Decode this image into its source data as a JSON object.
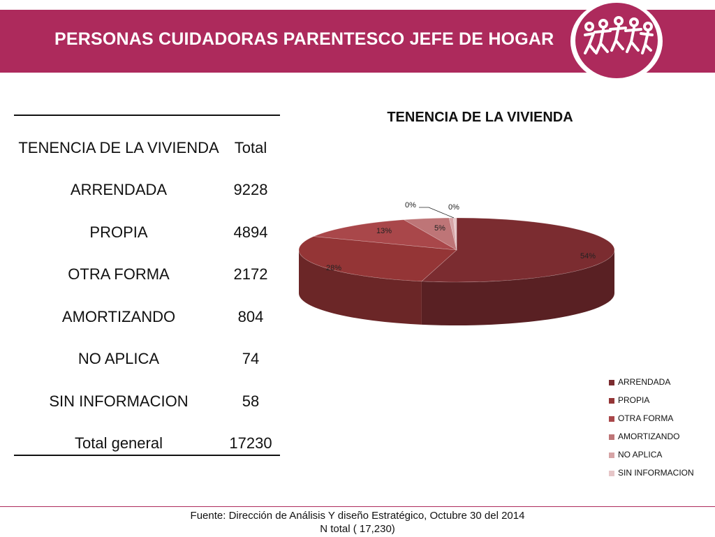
{
  "header": {
    "title": "PERSONAS  CUIDADORAS PARENTESCO JEFE DE HOGAR"
  },
  "table": {
    "header": [
      "TENENCIA DE LA VIVIENDA",
      "Total"
    ],
    "rows": [
      [
        "ARRENDADA",
        "9228"
      ],
      [
        "PROPIA",
        "4894"
      ],
      [
        "OTRA FORMA",
        "2172"
      ],
      [
        "AMORTIZANDO",
        "804"
      ],
      [
        "NO APLICA",
        "74"
      ],
      [
        "SIN INFORMACION",
        "58"
      ]
    ],
    "total": [
      "Total general",
      "17230"
    ]
  },
  "chart_data": {
    "type": "pie",
    "title": "TENENCIA DE LA VIVIENDA",
    "categories": [
      "ARRENDADA",
      "PROPIA",
      "OTRA FORMA",
      "AMORTIZANDO",
      "NO APLICA",
      "SIN INFORMACION"
    ],
    "values": [
      9228,
      4894,
      2172,
      804,
      74,
      58
    ],
    "data_labels": [
      "54%",
      "28%",
      "13%",
      "5%",
      "0%",
      "0%"
    ],
    "colors": [
      "#7b2c30",
      "#943536",
      "#a9474a",
      "#be7577",
      "#d6a4a6",
      "#e6c6c8"
    ],
    "legend_position": "bottom-right",
    "three_d": true
  },
  "footer": {
    "line1": "Fuente: Dirección de Análisis Y diseño Estratégico, Octubre 30 del 2014",
    "line2": "N total ( 17,230)"
  }
}
